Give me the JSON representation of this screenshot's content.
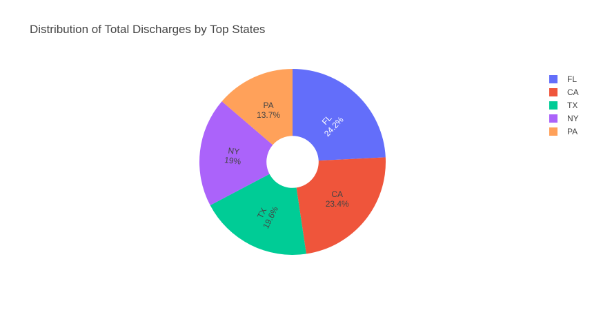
{
  "chart_data": {
    "type": "pie",
    "title": "Distribution of Total Discharges by Top States",
    "hole": 0.28,
    "legend_position": "top-right",
    "slices": [
      {
        "label": "FL",
        "percent": 24.2,
        "percent_text": "24.2%",
        "color": "#636efa",
        "text_color": "#ffffff"
      },
      {
        "label": "CA",
        "percent": 23.4,
        "percent_text": "23.4%",
        "color": "#ef553b",
        "text_color": "#444444"
      },
      {
        "label": "TX",
        "percent": 19.6,
        "percent_text": "19.6%",
        "color": "#00cc96",
        "text_color": "#444444"
      },
      {
        "label": "NY",
        "percent": 19.0,
        "percent_text": "19%",
        "color": "#ab63fa",
        "text_color": "#444444"
      },
      {
        "label": "PA",
        "percent": 13.7,
        "percent_text": "13.7%",
        "color": "#ffa15a",
        "text_color": "#444444"
      }
    ]
  }
}
